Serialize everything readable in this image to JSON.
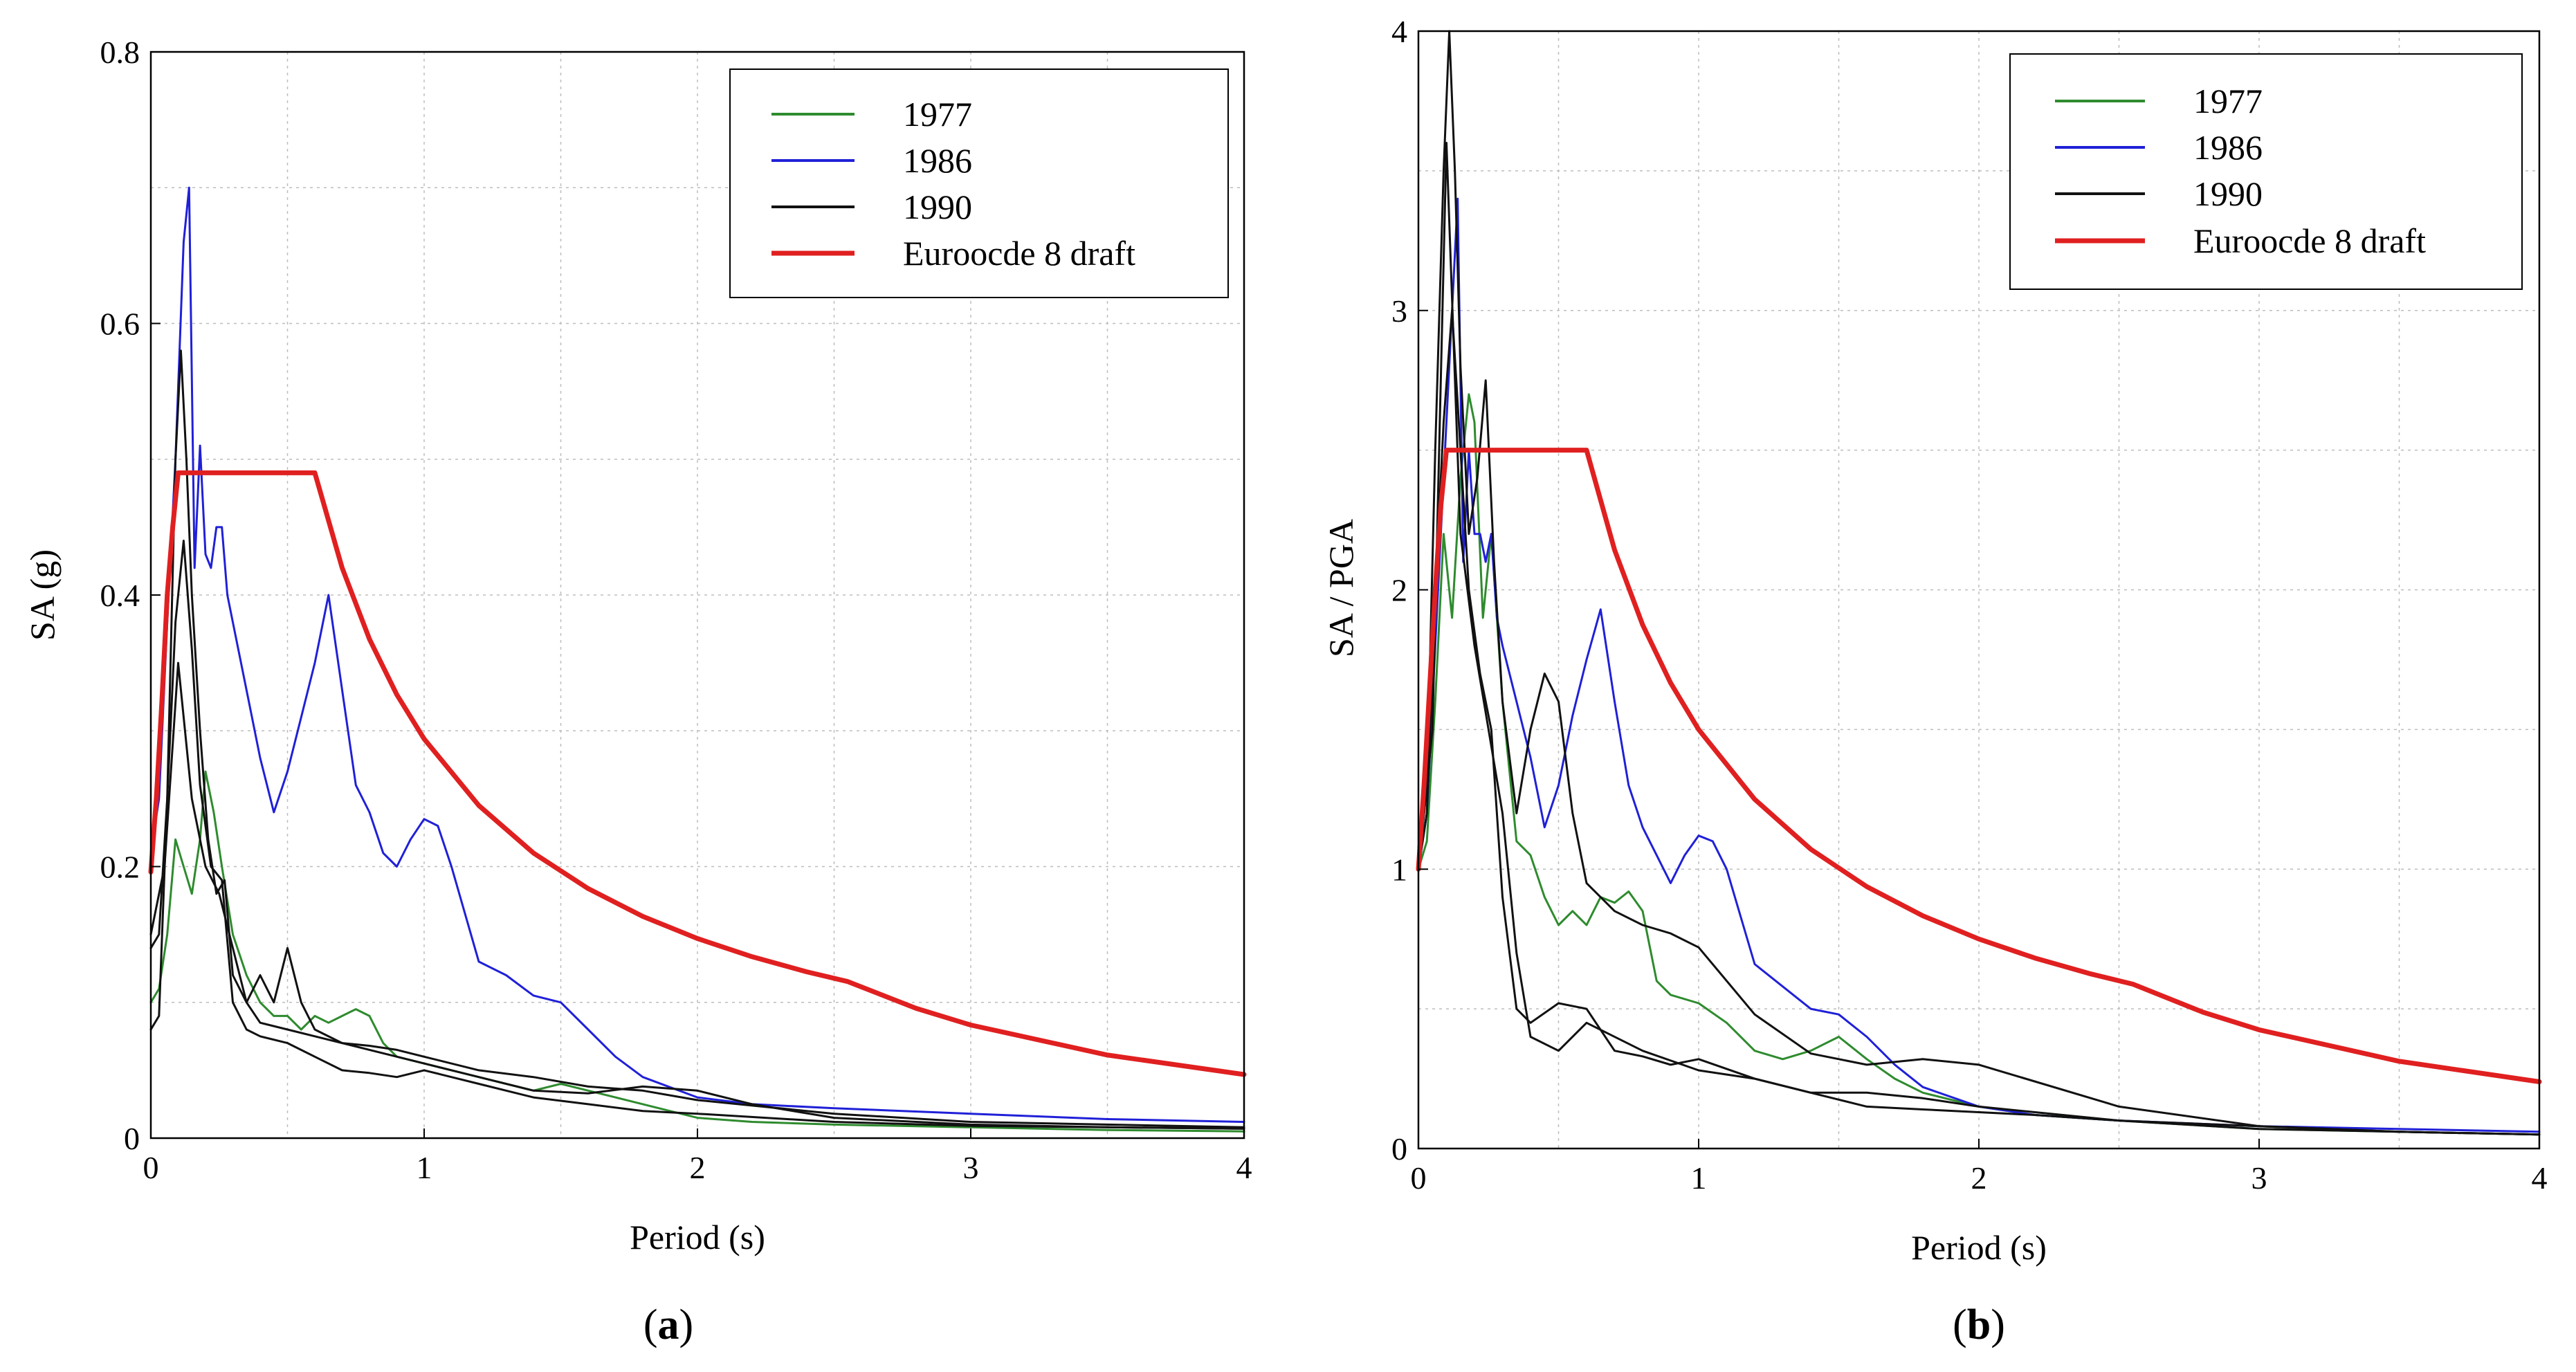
{
  "chart_data": [
    {
      "type": "line",
      "panel_label": "a",
      "title": "",
      "xlabel": "Period (s)",
      "ylabel": "SA (g)",
      "xlim": [
        0,
        4
      ],
      "ylim": [
        0,
        0.8
      ],
      "xticks": [
        0,
        1,
        2,
        3,
        4
      ],
      "yticks": [
        0,
        0.2,
        0.4,
        0.6,
        0.8
      ],
      "xtick_labels": [
        "0",
        "1",
        "2",
        "3",
        "4"
      ],
      "ytick_labels": [
        "0",
        "0.2",
        "0.4",
        "0.6",
        "0.8"
      ],
      "grid": true,
      "legend_position": "top-right",
      "colors": {
        "1977": "#2e8b2e",
        "1986": "#2020d8",
        "1990": "#111111",
        "ec8": "#e02020"
      },
      "series": [
        {
          "name": "1977",
          "color": "#2e8b2e",
          "legend": true,
          "x": [
            0,
            0.03,
            0.06,
            0.09,
            0.12,
            0.15,
            0.18,
            0.2,
            0.23,
            0.26,
            0.3,
            0.35,
            0.4,
            0.45,
            0.5,
            0.55,
            0.6,
            0.65,
            0.7,
            0.75,
            0.8,
            0.85,
            0.9,
            1.0,
            1.1,
            1.2,
            1.3,
            1.4,
            1.5,
            1.6,
            1.7,
            1.8,
            1.9,
            2.0,
            2.2,
            2.5,
            3.0,
            3.5,
            4.0
          ],
          "y": [
            0.1,
            0.11,
            0.15,
            0.22,
            0.2,
            0.18,
            0.22,
            0.27,
            0.24,
            0.2,
            0.15,
            0.12,
            0.1,
            0.09,
            0.09,
            0.08,
            0.09,
            0.085,
            0.09,
            0.095,
            0.09,
            0.07,
            0.06,
            0.055,
            0.05,
            0.045,
            0.04,
            0.035,
            0.04,
            0.035,
            0.03,
            0.025,
            0.02,
            0.015,
            0.012,
            0.01,
            0.008,
            0.006,
            0.005
          ]
        },
        {
          "name": "1986",
          "color": "#2020d8",
          "legend": true,
          "x": [
            0,
            0.03,
            0.06,
            0.09,
            0.12,
            0.14,
            0.16,
            0.18,
            0.2,
            0.22,
            0.24,
            0.26,
            0.28,
            0.3,
            0.35,
            0.4,
            0.45,
            0.5,
            0.55,
            0.6,
            0.65,
            0.7,
            0.75,
            0.8,
            0.85,
            0.9,
            0.95,
            1.0,
            1.05,
            1.1,
            1.2,
            1.3,
            1.4,
            1.5,
            1.6,
            1.7,
            1.8,
            2.0,
            2.2,
            2.5,
            3.0,
            3.5,
            4.0
          ],
          "y": [
            0.21,
            0.25,
            0.38,
            0.5,
            0.66,
            0.7,
            0.42,
            0.51,
            0.43,
            0.42,
            0.45,
            0.45,
            0.4,
            0.38,
            0.33,
            0.28,
            0.24,
            0.27,
            0.31,
            0.35,
            0.4,
            0.33,
            0.26,
            0.24,
            0.21,
            0.2,
            0.22,
            0.235,
            0.23,
            0.2,
            0.13,
            0.12,
            0.105,
            0.1,
            0.08,
            0.06,
            0.045,
            0.03,
            0.025,
            0.022,
            0.018,
            0.014,
            0.012
          ]
        },
        {
          "name": "1990",
          "color": "#111111",
          "legend": true,
          "x": [
            0,
            0.03,
            0.06,
            0.09,
            0.11,
            0.13,
            0.15,
            0.18,
            0.21,
            0.24,
            0.27,
            0.3,
            0.35,
            0.4,
            0.45,
            0.5,
            0.55,
            0.6,
            0.7,
            0.8,
            0.9,
            1.0,
            1.2,
            1.4,
            1.6,
            1.8,
            2.0,
            2.5,
            3.0,
            3.5,
            4.0
          ],
          "y": [
            0.08,
            0.09,
            0.25,
            0.5,
            0.58,
            0.5,
            0.4,
            0.3,
            0.22,
            0.18,
            0.19,
            0.12,
            0.1,
            0.12,
            0.1,
            0.14,
            0.1,
            0.08,
            0.07,
            0.068,
            0.065,
            0.06,
            0.05,
            0.045,
            0.038,
            0.035,
            0.028,
            0.018,
            0.012,
            0.01,
            0.008
          ]
        },
        {
          "name": "1990b",
          "color": "#111111",
          "legend": false,
          "x": [
            0,
            0.03,
            0.06,
            0.09,
            0.12,
            0.15,
            0.18,
            0.22,
            0.26,
            0.3,
            0.35,
            0.4,
            0.5,
            0.6,
            0.7,
            0.8,
            0.9,
            1.0,
            1.2,
            1.4,
            1.6,
            1.8,
            2.0,
            2.5,
            3.0,
            3.5,
            4.0
          ],
          "y": [
            0.14,
            0.15,
            0.25,
            0.38,
            0.44,
            0.36,
            0.26,
            0.2,
            0.19,
            0.1,
            0.08,
            0.075,
            0.07,
            0.06,
            0.05,
            0.048,
            0.045,
            0.05,
            0.04,
            0.03,
            0.025,
            0.02,
            0.018,
            0.012,
            0.009,
            0.008,
            0.007
          ]
        },
        {
          "name": "1990c",
          "color": "#111111",
          "legend": false,
          "x": [
            0,
            0.05,
            0.1,
            0.15,
            0.2,
            0.25,
            0.3,
            0.35,
            0.4,
            0.5,
            0.6,
            0.8,
            1.0,
            1.2,
            1.4,
            1.6,
            1.8,
            2.0,
            2.2,
            2.5,
            3.0,
            3.5,
            4.0
          ],
          "y": [
            0.15,
            0.2,
            0.35,
            0.25,
            0.2,
            0.18,
            0.14,
            0.1,
            0.085,
            0.08,
            0.075,
            0.065,
            0.055,
            0.045,
            0.035,
            0.033,
            0.038,
            0.035,
            0.025,
            0.015,
            0.01,
            0.008,
            0.007
          ]
        },
        {
          "name": "Euroocde 8 draft",
          "color": "#e02020",
          "legend": true,
          "width": 7,
          "x": [
            0,
            0.02,
            0.04,
            0.06,
            0.08,
            0.1,
            0.6,
            0.7,
            0.8,
            0.9,
            1.0,
            1.2,
            1.4,
            1.6,
            1.8,
            2.0,
            2.2,
            2.4,
            2.55,
            2.8,
            3.0,
            3.5,
            4.0
          ],
          "y": [
            0.196,
            0.25,
            0.32,
            0.4,
            0.45,
            0.49,
            0.49,
            0.42,
            0.3675,
            0.3267,
            0.294,
            0.245,
            0.21,
            0.1838,
            0.1633,
            0.147,
            0.1336,
            0.1225,
            0.1153,
            0.0956,
            0.0833,
            0.0612,
            0.0469
          ]
        }
      ],
      "legend": [
        "1977",
        "1986",
        "1990",
        "Euroocde 8 draft"
      ]
    },
    {
      "type": "line",
      "panel_label": "b",
      "title": "",
      "xlabel": "Period (s)",
      "ylabel": "SA / PGA",
      "xlim": [
        0,
        4
      ],
      "ylim": [
        0,
        4
      ],
      "xticks": [
        0,
        1,
        2,
        3,
        4
      ],
      "yticks": [
        0,
        1,
        2,
        3,
        4
      ],
      "xtick_labels": [
        "0",
        "1",
        "2",
        "3",
        "4"
      ],
      "ytick_labels": [
        "0",
        "1",
        "2",
        "3",
        "4"
      ],
      "grid": true,
      "legend_position": "top-right",
      "series": [
        {
          "name": "1977",
          "color": "#2e8b2e",
          "legend": true,
          "x": [
            0,
            0.03,
            0.06,
            0.09,
            0.12,
            0.15,
            0.18,
            0.2,
            0.23,
            0.26,
            0.3,
            0.35,
            0.4,
            0.45,
            0.5,
            0.55,
            0.6,
            0.65,
            0.7,
            0.75,
            0.8,
            0.85,
            0.9,
            1.0,
            1.1,
            1.2,
            1.3,
            1.4,
            1.5,
            1.6,
            1.7,
            1.8,
            2.0,
            2.2,
            2.5,
            3.0,
            3.5,
            4.0
          ],
          "y": [
            1.0,
            1.1,
            1.6,
            2.2,
            1.9,
            2.4,
            2.7,
            2.6,
            1.9,
            2.2,
            1.6,
            1.1,
            1.05,
            0.9,
            0.8,
            0.85,
            0.8,
            0.9,
            0.88,
            0.92,
            0.85,
            0.6,
            0.55,
            0.52,
            0.45,
            0.35,
            0.32,
            0.35,
            0.4,
            0.32,
            0.25,
            0.2,
            0.15,
            0.12,
            0.1,
            0.07,
            0.06,
            0.05
          ]
        },
        {
          "name": "1986",
          "color": "#2020d8",
          "legend": true,
          "x": [
            0,
            0.03,
            0.06,
            0.09,
            0.12,
            0.14,
            0.16,
            0.18,
            0.2,
            0.22,
            0.24,
            0.26,
            0.28,
            0.3,
            0.35,
            0.4,
            0.45,
            0.5,
            0.55,
            0.6,
            0.65,
            0.7,
            0.75,
            0.8,
            0.85,
            0.9,
            0.95,
            1.0,
            1.05,
            1.1,
            1.2,
            1.3,
            1.4,
            1.5,
            1.6,
            1.7,
            1.8,
            2.0,
            2.2,
            2.5,
            3.0,
            3.5,
            4.0
          ],
          "y": [
            1.0,
            1.2,
            1.8,
            2.4,
            3.0,
            3.4,
            2.1,
            2.5,
            2.2,
            2.2,
            2.1,
            2.2,
            1.9,
            1.8,
            1.6,
            1.4,
            1.15,
            1.3,
            1.55,
            1.75,
            1.93,
            1.6,
            1.3,
            1.15,
            1.05,
            0.95,
            1.05,
            1.12,
            1.1,
            1.0,
            0.66,
            0.58,
            0.5,
            0.48,
            0.4,
            0.3,
            0.22,
            0.15,
            0.12,
            0.1,
            0.08,
            0.07,
            0.06
          ]
        },
        {
          "name": "1990",
          "color": "#111111",
          "legend": true,
          "x": [
            0,
            0.03,
            0.06,
            0.09,
            0.11,
            0.13,
            0.15,
            0.18,
            0.21,
            0.24,
            0.27,
            0.3,
            0.35,
            0.4,
            0.45,
            0.5,
            0.55,
            0.6,
            0.7,
            0.8,
            0.9,
            1.0,
            1.2,
            1.4,
            1.6,
            1.8,
            2.0,
            2.5,
            3.0,
            3.5,
            4.0
          ],
          "y": [
            1.0,
            1.3,
            2.5,
            3.5,
            4.0,
            3.5,
            2.8,
            2.2,
            2.4,
            2.75,
            2.1,
            1.6,
            1.2,
            1.5,
            1.7,
            1.6,
            1.2,
            0.95,
            0.85,
            0.8,
            0.77,
            0.72,
            0.48,
            0.34,
            0.3,
            0.32,
            0.3,
            0.15,
            0.08,
            0.06,
            0.05
          ]
        },
        {
          "name": "1990b",
          "color": "#111111",
          "legend": false,
          "x": [
            0,
            0.03,
            0.06,
            0.09,
            0.12,
            0.15,
            0.18,
            0.22,
            0.26,
            0.3,
            0.35,
            0.4,
            0.5,
            0.6,
            0.7,
            0.8,
            0.9,
            1.0,
            1.2,
            1.4,
            1.6,
            1.8,
            2.0,
            2.5,
            3.0,
            3.5,
            4.0
          ],
          "y": [
            1.0,
            1.2,
            2.0,
            2.6,
            3.0,
            2.5,
            2.0,
            1.7,
            1.5,
            0.9,
            0.5,
            0.45,
            0.52,
            0.5,
            0.35,
            0.33,
            0.3,
            0.32,
            0.25,
            0.2,
            0.2,
            0.18,
            0.15,
            0.1,
            0.07,
            0.06,
            0.05
          ]
        },
        {
          "name": "1990c",
          "color": "#111111",
          "legend": false,
          "x": [
            0,
            0.05,
            0.1,
            0.15,
            0.2,
            0.25,
            0.3,
            0.35,
            0.4,
            0.5,
            0.6,
            0.8,
            1.0,
            1.2,
            1.4,
            1.6,
            1.8,
            2.0,
            2.2,
            2.5,
            3.0,
            3.5,
            4.0
          ],
          "y": [
            1.0,
            1.5,
            3.6,
            2.2,
            1.8,
            1.5,
            1.2,
            0.7,
            0.4,
            0.35,
            0.45,
            0.35,
            0.28,
            0.25,
            0.2,
            0.15,
            0.14,
            0.13,
            0.12,
            0.1,
            0.08,
            0.06,
            0.05
          ]
        },
        {
          "name": "Euroocde 8 draft",
          "color": "#e02020",
          "legend": true,
          "width": 7,
          "x": [
            0,
            0.02,
            0.04,
            0.06,
            0.08,
            0.1,
            0.6,
            0.7,
            0.8,
            0.9,
            1.0,
            1.2,
            1.4,
            1.6,
            1.8,
            2.0,
            2.2,
            2.4,
            2.55,
            2.8,
            3.0,
            3.5,
            4.0
          ],
          "y": [
            1.0,
            1.3,
            1.65,
            2.0,
            2.3,
            2.5,
            2.5,
            2.1429,
            1.875,
            1.6667,
            1.5,
            1.25,
            1.0714,
            0.9375,
            0.8333,
            0.75,
            0.6818,
            0.625,
            0.5882,
            0.488,
            0.425,
            0.3122,
            0.239
          ]
        }
      ],
      "legend": [
        "1977",
        "1986",
        "1990",
        "Euroocde 8 draft"
      ]
    }
  ],
  "captions": [
    {
      "open": "(",
      "label": "a",
      "close": ")"
    },
    {
      "open": "(",
      "label": "b",
      "close": ")"
    }
  ]
}
